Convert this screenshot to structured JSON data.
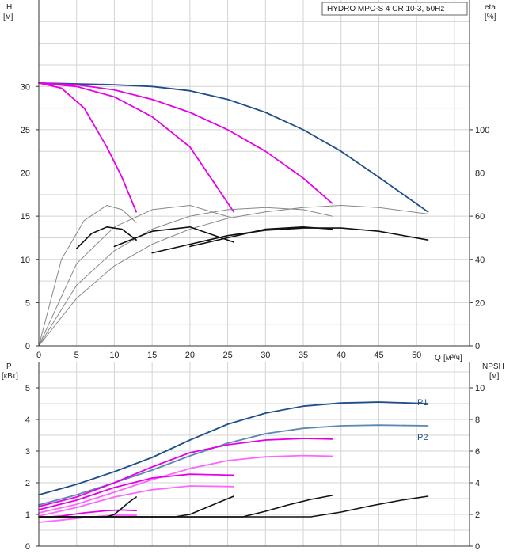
{
  "chart_data": [
    {
      "type": "line",
      "title": "HYDRO MPC-S 4 CR 10-3, 50Hz",
      "ylabel": "H",
      "yunit": "[м]",
      "y2label": "eta",
      "y2unit": "[%]",
      "xlabel": "Q",
      "xunit": "[м³/ч]",
      "xlim": [
        0,
        57
      ],
      "ylim": [
        0,
        40
      ],
      "y2lim": [
        0,
        160
      ],
      "xticks": [
        0,
        5,
        10,
        15,
        20,
        25,
        30,
        35,
        40,
        45,
        50
      ],
      "yticks": [
        0,
        5,
        10,
        15,
        20,
        25,
        30
      ],
      "y2ticks": [
        0,
        20,
        40,
        60,
        80,
        100
      ],
      "grid": true,
      "series": [
        {
          "color": "#1f4f8a",
          "axis": "left",
          "x": [
            0,
            5,
            10,
            15,
            20,
            25,
            30,
            35,
            40,
            45,
            51.5
          ],
          "y": [
            30.4,
            30.3,
            30.2,
            30.0,
            29.5,
            28.5,
            27.0,
            25.0,
            22.5,
            19.5,
            15.5
          ]
        },
        {
          "color": "#e600e6",
          "axis": "left",
          "x": [
            0,
            5,
            10,
            15,
            20,
            25,
            30,
            35,
            38.8
          ],
          "y": [
            30.4,
            30.2,
            29.6,
            28.5,
            27.0,
            25.0,
            22.5,
            19.4,
            16.5
          ]
        },
        {
          "color": "#e600e6",
          "axis": "left",
          "x": [
            0,
            5,
            10,
            15,
            20,
            25.8
          ],
          "y": [
            30.4,
            30.0,
            28.8,
            26.5,
            23.0,
            15.5
          ]
        },
        {
          "color": "#e600e6",
          "axis": "left",
          "x": [
            0,
            3,
            6,
            9,
            11,
            12.9
          ],
          "y": [
            30.4,
            29.8,
            27.5,
            23.0,
            19.5,
            15.5
          ]
        },
        {
          "color": "#888888",
          "axis": "right",
          "x": [
            0,
            5,
            10,
            15,
            20,
            25,
            30,
            35,
            40,
            45,
            51.5
          ],
          "y": [
            0,
            22,
            37,
            47,
            54,
            59,
            62,
            64,
            65,
            64,
            61
          ]
        },
        {
          "color": "#888888",
          "axis": "right",
          "x": [
            0,
            5,
            10,
            15,
            20,
            25,
            30,
            35,
            38.8
          ],
          "y": [
            0,
            28,
            44,
            54,
            60,
            63,
            64,
            63,
            60
          ]
        },
        {
          "color": "#888888",
          "axis": "right",
          "x": [
            0,
            5,
            10,
            15,
            20,
            25.8
          ],
          "y": [
            0,
            38,
            55,
            63,
            65,
            59
          ]
        },
        {
          "color": "#888888",
          "axis": "right",
          "x": [
            0,
            3,
            6,
            9,
            11,
            12.9
          ],
          "y": [
            0,
            40,
            58,
            65,
            63,
            57
          ]
        },
        {
          "color": "#111111",
          "axis": "right",
          "x": [
            20,
            25,
            30,
            35,
            38.8
          ],
          "y": [
            46,
            50,
            54,
            55,
            54
          ]
        },
        {
          "color": "#111111",
          "axis": "right",
          "x": [
            15,
            20,
            25,
            30,
            35,
            40,
            45,
            51.5
          ],
          "y": [
            43,
            47,
            51,
            53.5,
            54.5,
            54.5,
            53,
            49
          ]
        },
        {
          "color": "#111111",
          "axis": "right",
          "x": [
            10,
            15,
            20,
            25.8
          ],
          "y": [
            46,
            53,
            55,
            48
          ]
        },
        {
          "color": "#111111",
          "axis": "right",
          "x": [
            5,
            7,
            9,
            11,
            12.9
          ],
          "y": [
            45,
            52,
            55,
            54,
            49
          ]
        }
      ]
    },
    {
      "type": "line",
      "ylabel": "P",
      "yunit": "[кВт]",
      "y2label": "NPSH",
      "y2unit": "[м]",
      "xlim": [
        0,
        57
      ],
      "ylim": [
        0,
        5.8
      ],
      "y2lim": [
        0,
        11.6
      ],
      "yticks": [
        0,
        1,
        2,
        3,
        4,
        5
      ],
      "y2ticks": [
        0,
        2,
        4,
        6,
        8,
        10
      ],
      "grid": true,
      "series": [
        {
          "name": "P1",
          "color": "#1f4f8a",
          "axis": "left",
          "x": [
            0,
            5,
            10,
            15,
            20,
            25,
            30,
            35,
            40,
            45,
            51.5
          ],
          "y": [
            1.62,
            1.95,
            2.35,
            2.8,
            3.35,
            3.85,
            4.2,
            4.42,
            4.52,
            4.55,
            4.5
          ]
        },
        {
          "name": "P2",
          "color": "#5b87b3",
          "axis": "left",
          "x": [
            0,
            5,
            10,
            15,
            20,
            25,
            30,
            35,
            40,
            45,
            51.5
          ],
          "y": [
            1.3,
            1.62,
            2.0,
            2.4,
            2.85,
            3.25,
            3.55,
            3.72,
            3.8,
            3.82,
            3.8
          ]
        },
        {
          "color": "#e600e6",
          "axis": "left",
          "x": [
            0,
            5,
            10,
            15,
            20,
            25,
            30,
            35,
            38.8
          ],
          "y": [
            1.25,
            1.55,
            2.0,
            2.5,
            2.95,
            3.2,
            3.35,
            3.4,
            3.38
          ]
        },
        {
          "color": "#ff66ff",
          "axis": "left",
          "x": [
            0,
            5,
            10,
            15,
            20,
            25,
            30,
            35,
            38.8
          ],
          "y": [
            1.05,
            1.32,
            1.7,
            2.1,
            2.45,
            2.7,
            2.82,
            2.86,
            2.84
          ]
        },
        {
          "color": "#e600e6",
          "axis": "left",
          "x": [
            0,
            5,
            10,
            15,
            20,
            25.8
          ],
          "y": [
            1.15,
            1.45,
            1.85,
            2.15,
            2.27,
            2.24
          ]
        },
        {
          "color": "#ff66ff",
          "axis": "left",
          "x": [
            0,
            5,
            10,
            15,
            20,
            25.8
          ],
          "y": [
            0.95,
            1.22,
            1.55,
            1.78,
            1.9,
            1.88
          ]
        },
        {
          "color": "#e600e6",
          "axis": "left",
          "x": [
            0,
            3,
            6,
            9,
            11,
            12.9
          ],
          "y": [
            0.9,
            0.95,
            1.05,
            1.12,
            1.14,
            1.12
          ]
        },
        {
          "color": "#ff66ff",
          "axis": "left",
          "x": [
            0,
            3,
            6,
            9,
            11,
            12.9
          ],
          "y": [
            0.75,
            0.82,
            0.9,
            0.96,
            0.98,
            0.97
          ]
        },
        {
          "color": "#111111",
          "axis": "right",
          "x": [
            0,
            9,
            10,
            11,
            12,
            12.9
          ],
          "y": [
            1.85,
            1.85,
            2.0,
            2.4,
            2.8,
            3.1
          ]
        },
        {
          "color": "#111111",
          "axis": "right",
          "x": [
            0,
            18,
            20,
            22,
            24,
            25.8
          ],
          "y": [
            1.85,
            1.85,
            2.0,
            2.4,
            2.8,
            3.15
          ]
        },
        {
          "color": "#111111",
          "axis": "right",
          "x": [
            0,
            27,
            30,
            33,
            36,
            38.8
          ],
          "y": [
            1.85,
            1.85,
            2.2,
            2.6,
            2.95,
            3.2
          ]
        },
        {
          "color": "#111111",
          "axis": "right",
          "x": [
            0,
            36,
            40,
            44,
            48,
            51.5
          ],
          "y": [
            1.85,
            1.85,
            2.15,
            2.55,
            2.9,
            3.15
          ]
        }
      ]
    }
  ]
}
